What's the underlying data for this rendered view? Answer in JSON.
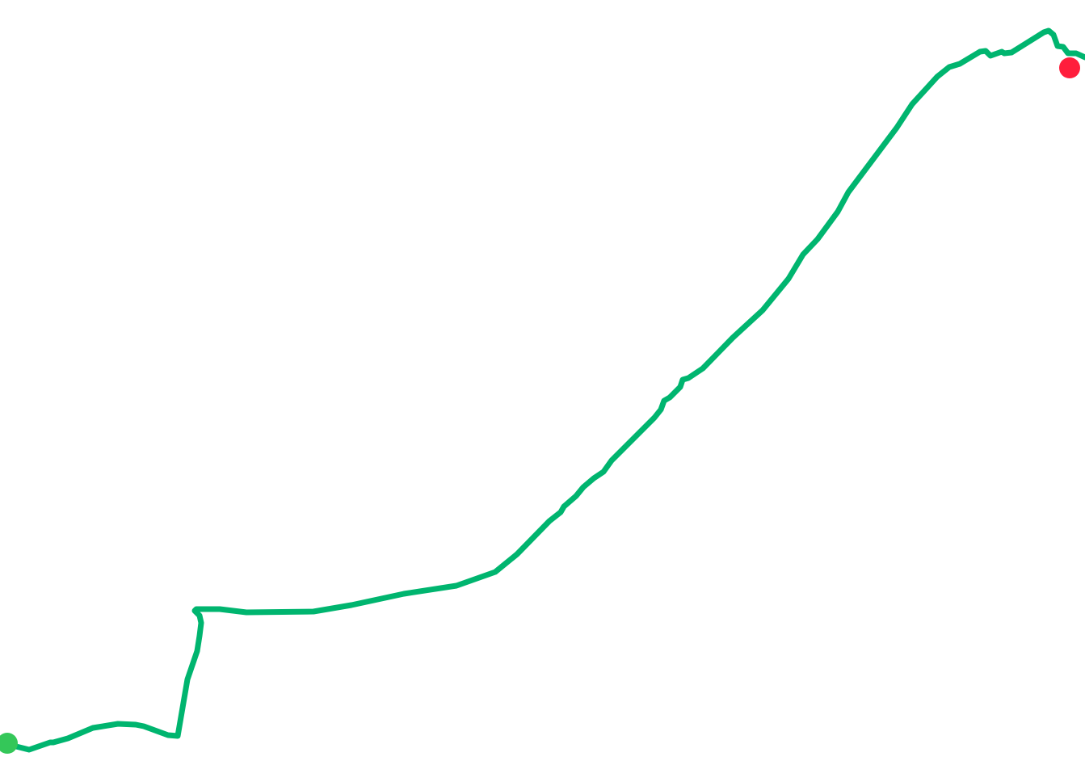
{
  "map": {
    "route": {
      "color": "#00b56f"
    },
    "start_marker": {
      "icon": "start-point-marker",
      "color": "#34c759"
    },
    "end_marker": {
      "icon": "end-point-marker",
      "color": "#ff1e3c"
    }
  }
}
